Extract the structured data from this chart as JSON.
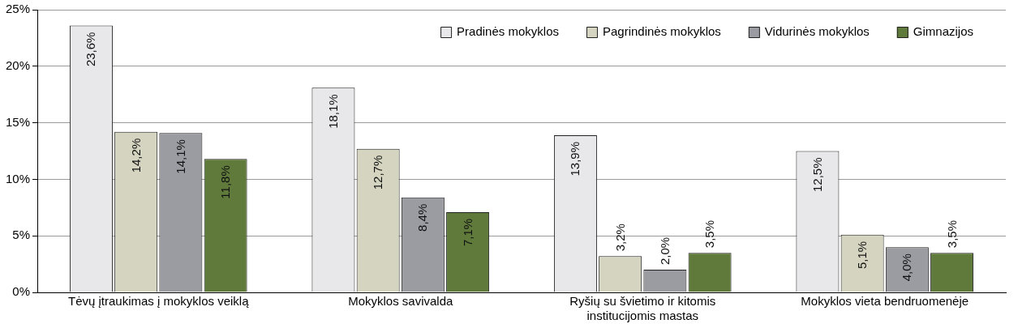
{
  "chart_data": {
    "type": "bar",
    "categories": [
      "Tėvų įtraukimas į mokyklos veiklą",
      "Mokyklos savivalda",
      "Ryšių su švietimo ir kitomis institucijomis mastas",
      "Mokyklos vieta bendruomenėje"
    ],
    "series": [
      {
        "name": "Pradinės mokyklos",
        "color": "#e8e8ea",
        "values": [
          23.6,
          18.1,
          13.9,
          12.5
        ],
        "value_labels": [
          "23,6%",
          "18,1%",
          "13,9%",
          "12,5%"
        ]
      },
      {
        "name": "Pagrindinės mokyklos",
        "color": "#d4d4c0",
        "values": [
          14.2,
          12.7,
          3.2,
          5.1
        ],
        "value_labels": [
          "14,2%",
          "12,7%",
          "3,2%",
          "5,1%"
        ]
      },
      {
        "name": "Vidurinės mokyklos",
        "color": "#9b9ba2",
        "values": [
          14.1,
          8.4,
          2.0,
          4.0
        ],
        "value_labels": [
          "14,1%",
          "8,4%",
          "2,0%",
          "4,0%"
        ]
      },
      {
        "name": "Gimnazijos",
        "color": "#5f7a3b",
        "values": [
          11.8,
          7.1,
          3.5,
          3.5
        ],
        "value_labels": [
          "11,8%",
          "7,1%",
          "3,5%",
          "3,5%"
        ]
      }
    ],
    "ylim": [
      0,
      25
    ],
    "yticks": [
      {
        "value": 0,
        "label": "0%"
      },
      {
        "value": 5,
        "label": "5%"
      },
      {
        "value": 10,
        "label": "10%"
      },
      {
        "value": 15,
        "label": "15%"
      },
      {
        "value": 20,
        "label": "20%"
      },
      {
        "value": 25,
        "label": "25%"
      }
    ],
    "grid": "y",
    "legend": "top right"
  }
}
